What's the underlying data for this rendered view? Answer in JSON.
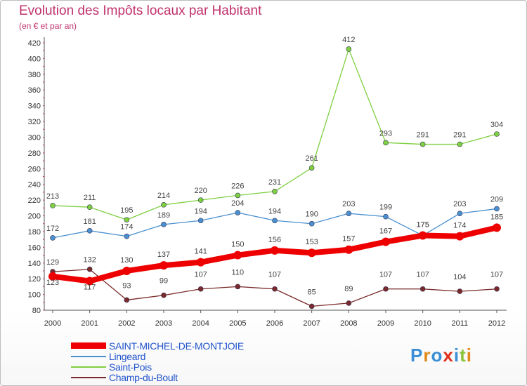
{
  "title": "Evolution des Impôts locaux par Habitant",
  "subtitle": "(en € et par an)",
  "logo": {
    "text": "Proxiti",
    "colors": [
      "#3b8fd6",
      "#e08a1c",
      "#3b8fd6",
      "#e0301c",
      "#3b8fd6",
      "#8bc43a",
      "#e08a1c"
    ]
  },
  "chart_data": {
    "type": "line",
    "x": [
      "2000",
      "2001",
      "2002",
      "2003",
      "2004",
      "2005",
      "2006",
      "2007",
      "2008",
      "2009",
      "2010",
      "2011",
      "2012"
    ],
    "ylim": [
      80,
      420
    ],
    "yticks": [
      80,
      100,
      120,
      140,
      160,
      180,
      200,
      220,
      240,
      260,
      280,
      300,
      320,
      340,
      360,
      380,
      400,
      420
    ],
    "grid": false,
    "legend_position": "bottom-left",
    "series": [
      {
        "name": "SAINT-MICHEL-DE-MONTJOIE",
        "color": "#ee0000",
        "values": [
          123,
          117,
          130,
          137,
          141,
          150,
          156,
          153,
          157,
          167,
          175,
          174,
          185
        ]
      },
      {
        "name": "Lingeard",
        "color": "#4a90d0",
        "values": [
          172,
          181,
          174,
          189,
          194,
          204,
          194,
          190,
          203,
          199,
          175,
          203,
          209
        ]
      },
      {
        "name": "Saint-Pois",
        "color": "#7ed040",
        "values": [
          213,
          211,
          195,
          214,
          220,
          226,
          231,
          261,
          412,
          293,
          291,
          291,
          304
        ]
      },
      {
        "name": "Champ-du-Boult",
        "color": "#7a2a2a",
        "values": [
          129,
          132,
          93,
          99,
          107,
          110,
          107,
          85,
          89,
          107,
          107,
          104,
          107
        ]
      }
    ]
  }
}
